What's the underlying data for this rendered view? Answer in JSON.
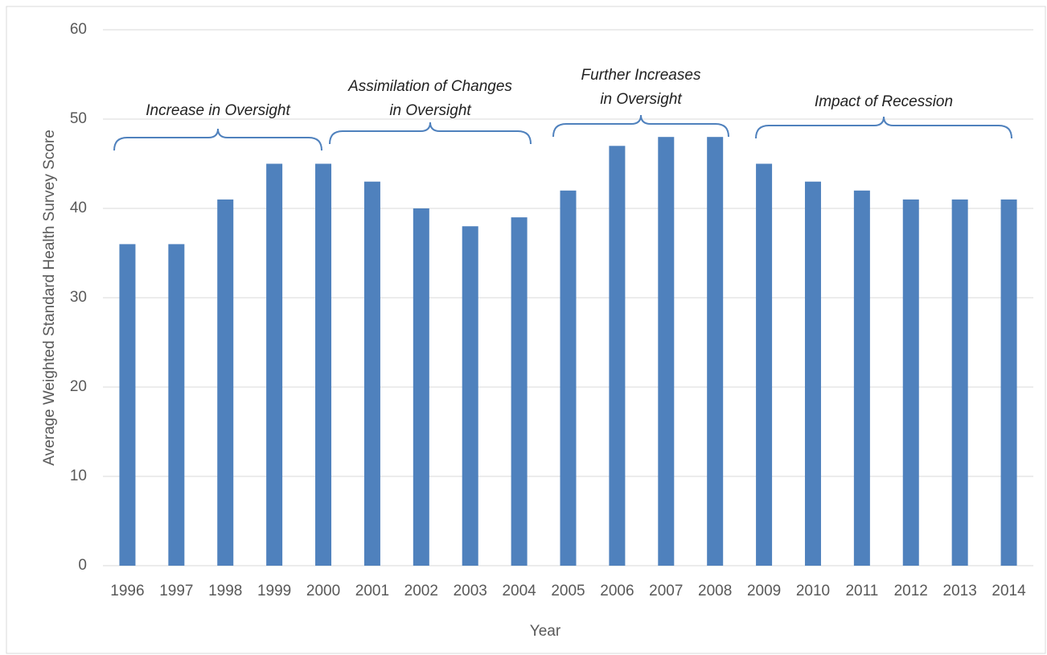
{
  "chart_data": {
    "type": "bar",
    "y_label": "Average Weighted Standard Health Survey Score",
    "x_label": "Year",
    "categories": [
      "1996",
      "1997",
      "1998",
      "1999",
      "2000",
      "2001",
      "2002",
      "2003",
      "2004",
      "2005",
      "2006",
      "2007",
      "2008",
      "2009",
      "2010",
      "2011",
      "2012",
      "2013",
      "2014"
    ],
    "values": [
      36,
      36,
      41,
      45,
      45,
      43,
      40,
      38,
      39,
      42,
      47,
      48,
      48,
      45,
      43,
      42,
      41,
      41,
      41
    ],
    "color": "#4f81bd",
    "ylim": [
      0,
      60
    ],
    "yticks": [
      0,
      10,
      20,
      30,
      40,
      50,
      60
    ],
    "grid": true,
    "annotations": [
      {
        "lines": [
          "Increase in Oversight"
        ]
      },
      {
        "lines": [
          "Assimilation of Changes",
          "in Oversight"
        ]
      },
      {
        "lines": [
          "Further Increases",
          "in Oversight"
        ]
      },
      {
        "lines": [
          "Impact of Recession"
        ]
      }
    ]
  }
}
